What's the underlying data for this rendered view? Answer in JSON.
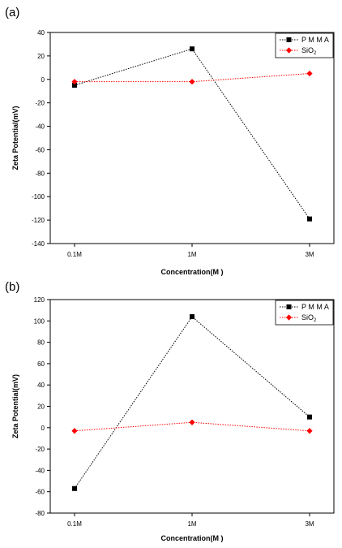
{
  "chart_data": [
    {
      "panel": "(a)",
      "type": "line",
      "categories": [
        "0.1M",
        "1M",
        "3M"
      ],
      "xlabel": "Concentration(M )",
      "ylabel": "Zeta Potential(mV)",
      "ylim": [
        -140,
        40
      ],
      "yticks": [
        40,
        20,
        0,
        -20,
        -40,
        -60,
        -80,
        -100,
        -120,
        -140
      ],
      "legend_position": "top-right",
      "series": [
        {
          "name": "PMMA",
          "legend_label": "P M M A",
          "values": [
            -5,
            26,
            -119
          ],
          "color": "#000000",
          "marker": "square",
          "line": "dotted"
        },
        {
          "name": "SiO2",
          "legend_label": "SiO",
          "legend_subscript": "2",
          "values": [
            -2,
            -2,
            5
          ],
          "color": "#ff0000",
          "marker": "diamond",
          "line": "dotted"
        }
      ]
    },
    {
      "panel": "(b)",
      "type": "line",
      "categories": [
        "0.1M",
        "1M",
        "3M"
      ],
      "xlabel": "Concentration(M )",
      "ylabel": "Zeta Potential(mV)",
      "ylim": [
        -80,
        120
      ],
      "yticks": [
        120,
        100,
        80,
        60,
        40,
        20,
        0,
        -20,
        -40,
        -60,
        -80
      ],
      "legend_position": "top-right",
      "series": [
        {
          "name": "PMMA",
          "legend_label": "P M M A",
          "values": [
            -57,
            104,
            10
          ],
          "color": "#000000",
          "marker": "square",
          "line": "dotted"
        },
        {
          "name": "SiO2",
          "legend_label": "SiO",
          "legend_subscript": "2",
          "values": [
            -3,
            5,
            -3
          ],
          "color": "#ff0000",
          "marker": "diamond",
          "line": "dotted"
        }
      ]
    }
  ]
}
